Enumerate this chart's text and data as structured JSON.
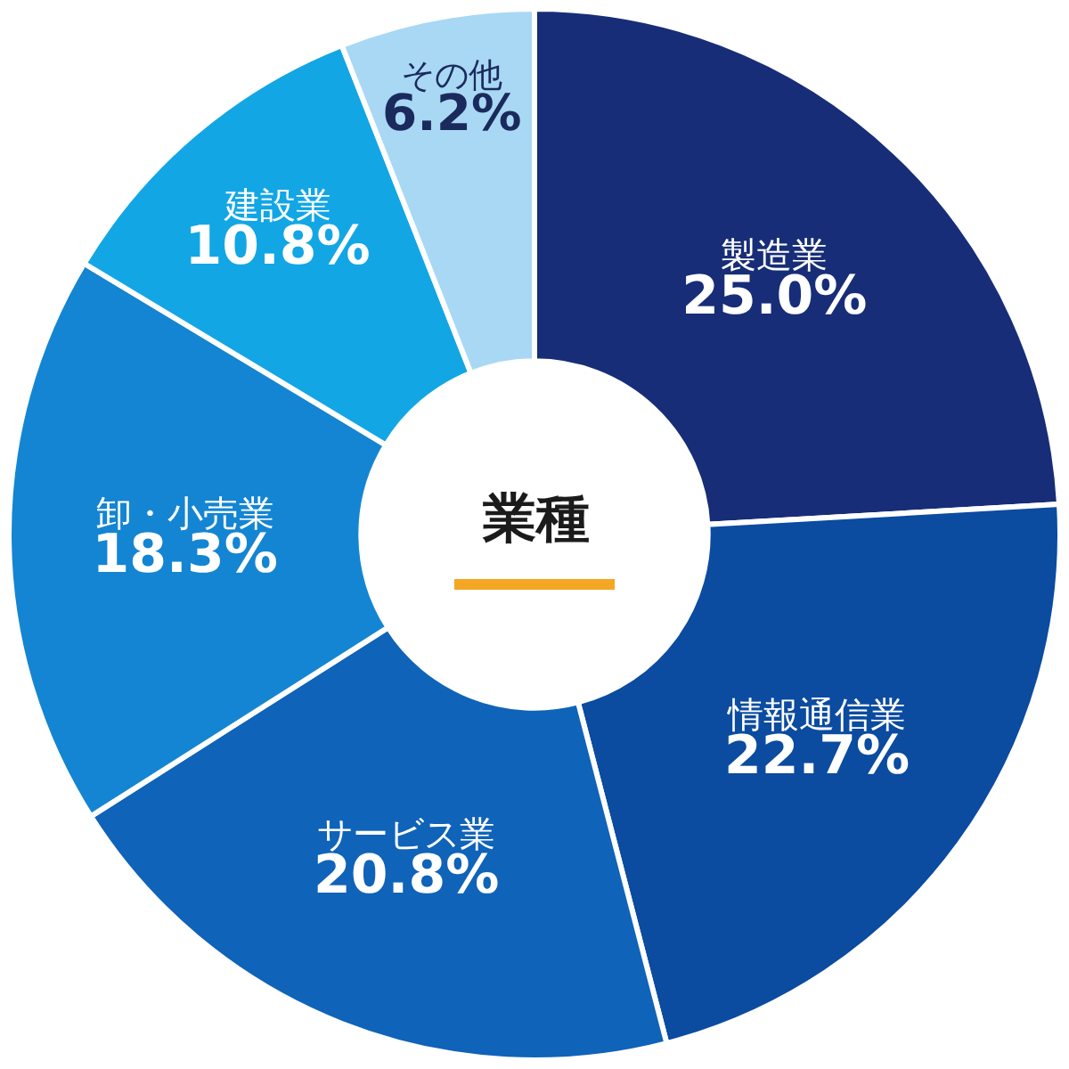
{
  "chart_data": {
    "type": "donut",
    "title": "業種",
    "categories": [
      "製造業",
      "情報通信業",
      "サービス業",
      "卸・小売業",
      "建設業",
      "その他"
    ],
    "values": [
      25.0,
      22.7,
      20.8,
      18.3,
      10.8,
      6.2
    ],
    "value_labels": [
      "25.0%",
      "22.7%",
      "20.8%",
      "18.3%",
      "10.8%",
      "6.2%"
    ],
    "colors": [
      "#172d78",
      "#0b4ba0",
      "#0f63b8",
      "#1485d2",
      "#12a6e5",
      "#a8d8f4"
    ],
    "legend": false
  }
}
